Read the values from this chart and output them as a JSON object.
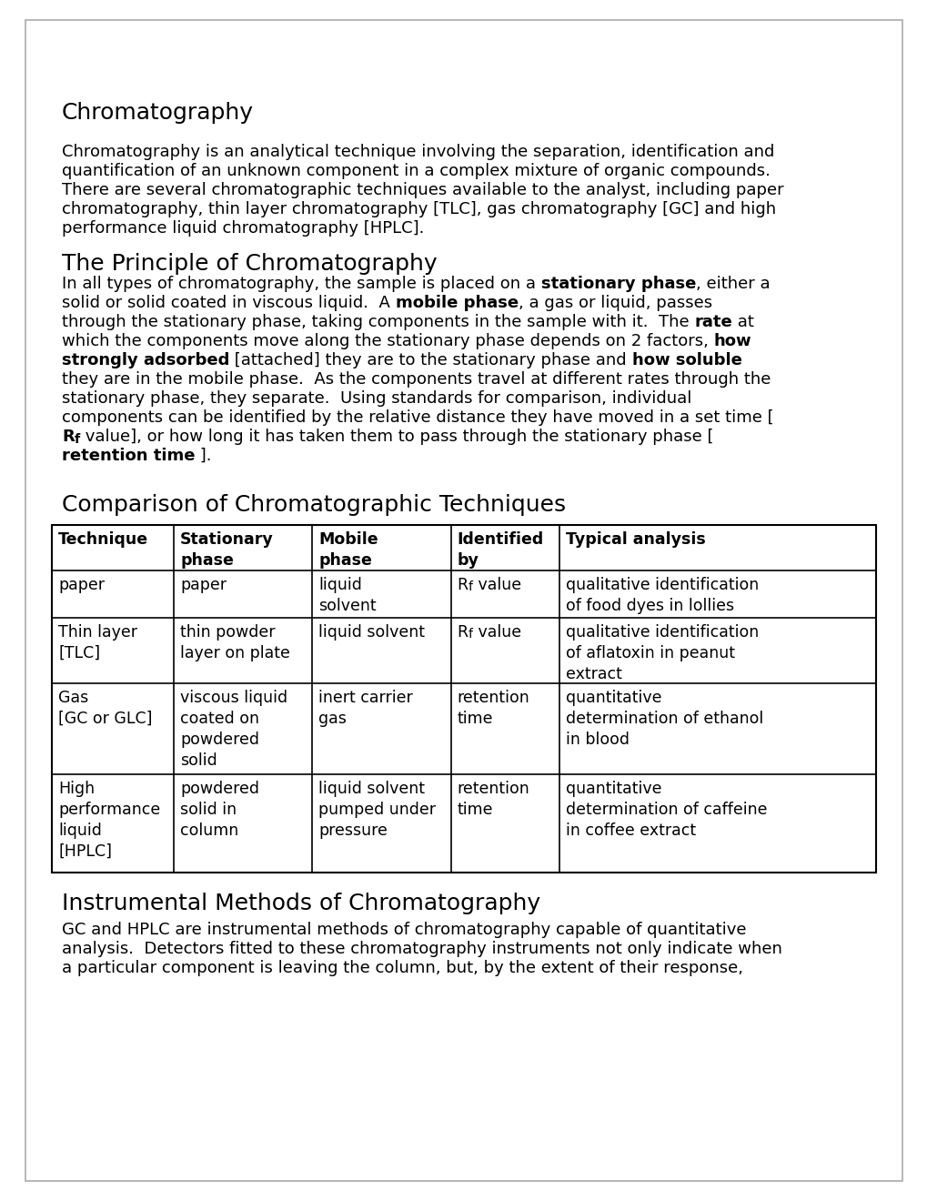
{
  "background_color": "#ffffff",
  "border_color": "#aaaaaa",
  "text_color": "#000000",
  "title1": "Chromatography",
  "para1_lines": [
    "Chromatography is an analytical technique involving the separation, identification and",
    "quantification of an unknown component in a complex mixture of organic compounds.",
    "There are several chromatographic techniques available to the analyst, including paper",
    "chromatography, thin layer chromatography [TLC], gas chromatography [GC] and high",
    "performance liquid chromatography [HPLC]."
  ],
  "title2": "The Principle of Chromatography",
  "para2_lines": [
    [
      [
        "In all types of chromatography, the sample is placed on a ",
        false
      ],
      [
        "stationary phase",
        true
      ],
      [
        ", either a",
        false
      ]
    ],
    [
      [
        "solid or solid coated in viscous liquid.  A ",
        false
      ],
      [
        "mobile phase",
        true
      ],
      [
        ", a gas or liquid, passes",
        false
      ]
    ],
    [
      [
        "through the stationary phase, taking components in the sample with it.  The ",
        false
      ],
      [
        "rate",
        true
      ],
      [
        " at",
        false
      ]
    ],
    [
      [
        "which the components move along the stationary phase depends on 2 factors, ",
        false
      ],
      [
        "how",
        true
      ]
    ],
    [
      [
        "strongly adsorbed",
        true
      ],
      [
        " [attached] they are to the stationary phase and ",
        false
      ],
      [
        "how soluble",
        true
      ]
    ],
    [
      [
        "they are in the mobile phase.  As the components travel at different rates through the",
        false
      ]
    ],
    [
      [
        "stationary phase, they separate.  Using standards for comparison, individual",
        false
      ]
    ],
    [
      [
        "components can be identified by the relative distance they have moved in a set time [",
        false
      ]
    ],
    [
      [
        "R",
        true
      ],
      [
        "f",
        true,
        true
      ],
      [
        " value], or how long it has taken them to pass through the stationary phase [",
        false
      ]
    ],
    [
      [
        "retention time",
        true
      ],
      [
        " ].",
        false
      ]
    ]
  ],
  "title3": "Comparison of Chromatographic Techniques",
  "table_headers": [
    "Technique",
    "Stationary\nphase",
    "Mobile\nphase",
    "Identified\nby",
    "Typical analysis"
  ],
  "table_rows": [
    [
      "paper",
      "paper",
      "liquid\nsolvent",
      "Rf",
      "qualitative identification\nof food dyes in lollies"
    ],
    [
      "Thin layer\n[TLC]",
      "thin powder\nlayer on plate",
      "liquid solvent",
      "Rf",
      "qualitative identification\nof aflatoxin in peanut\nextract"
    ],
    [
      "Gas\n[GC or GLC]",
      "viscous liquid\ncoated on\npowdered\nsolid",
      "inert carrier\ngas",
      "retention\ntime",
      "quantitative\ndetermination of ethanol\nin blood"
    ],
    [
      "High\nperformance\nliquid\n[HPLC]",
      "powdered\nsolid in\ncolumn",
      "liquid solvent\npumped under\npressure",
      "retention\ntime",
      "quantitative\ndetermination of caffeine\nin coffee extract"
    ]
  ],
  "title4": "Instrumental Methods of Chromatography",
  "para4_lines": [
    "GC and HPLC are instrumental methods of chromatography capable of quantitative",
    "analysis.  Detectors fitted to these chromatography instruments not only indicate when",
    "a particular component is leaving the column, but, by the extent of their response,"
  ],
  "font_size_h1": 18,
  "font_size_body": 13,
  "font_size_table": 12.5
}
